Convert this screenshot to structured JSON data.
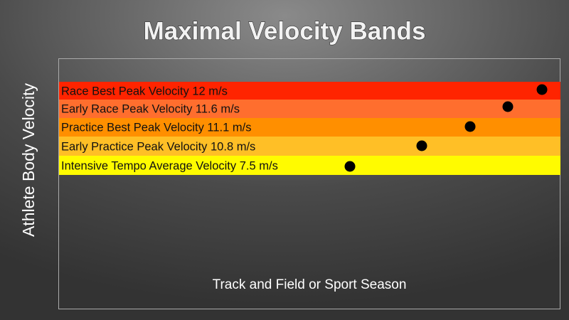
{
  "title": "Maximal Velocity Bands",
  "y_axis_label": "Athlete Body Velocity",
  "x_axis_label": "Track and Field or Sport Season",
  "bands": [
    {
      "label": "Race Best Peak Velocity 12 m/s"
    },
    {
      "label": "Early Race Peak Velocity 11.6 m/s"
    },
    {
      "label": "Practice Best Peak Velocity  11.1 m/s"
    },
    {
      "label": "Early Practice Peak Velocity  10.8 m/s"
    },
    {
      "label": "Intensive Tempo Average Velocity 7.5 m/s"
    }
  ]
}
